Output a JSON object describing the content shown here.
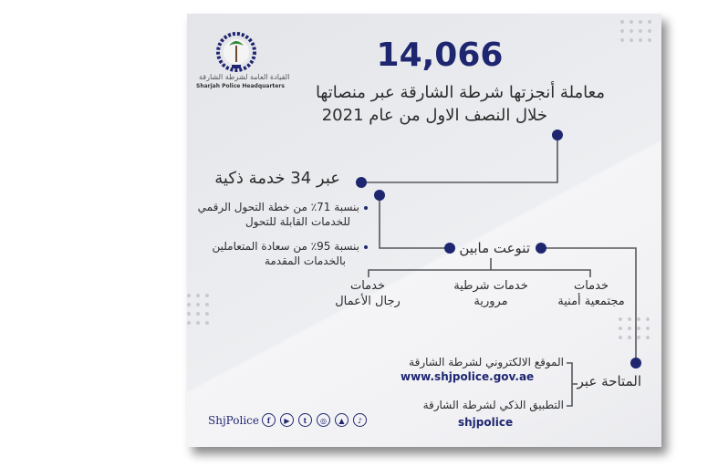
{
  "header": {
    "logo_caption_ar": "القيادة العامة لشرطة الشارقة",
    "logo_caption_en": "Sharjah Police Headquarters",
    "total": "14,066",
    "subtitle_line1": "معاملة أنجزتها شرطة الشارقة عبر منصاتها",
    "subtitle_line2": "خلال النصف الاول من عام 2021"
  },
  "smart_services": {
    "label": "عبر 34 خدمة ذكية",
    "bullets": [
      {
        "line1": "بنسبة 71٪ من خطة التحول الرقمي",
        "line2": "للخدمات  القابلة للتحول"
      },
      {
        "line1": "بنسبة 95٪ من سعادة المتعاملين",
        "line2": "بالخدمات المقدمة"
      }
    ]
  },
  "varied": {
    "label": "تنوعت مابين",
    "categories": [
      {
        "line1": "خدمات",
        "line2": "رجال الأعمال"
      },
      {
        "line1": "خدمات شرطية",
        "line2": "مرورية"
      },
      {
        "line1": "خدمات",
        "line2": "مجتمعية أمنية"
      }
    ]
  },
  "available": {
    "label": "المتاحة عبر",
    "website_label": "الموقع الالكتروني لشرطة الشارقة",
    "website_url": "www.shjpolice.gov.ae",
    "app_label": "التطبيق الذكي لشرطة الشارقة",
    "app_name": "shjpolice"
  },
  "footer": {
    "handle": "ShjPolice",
    "social_icons": [
      "facebook-icon",
      "youtube-icon",
      "twitter-icon",
      "instagram-icon",
      "snapchat-icon",
      "tiktok-icon"
    ]
  },
  "colors": {
    "accent": "#1f2670",
    "line": "#55575c"
  }
}
